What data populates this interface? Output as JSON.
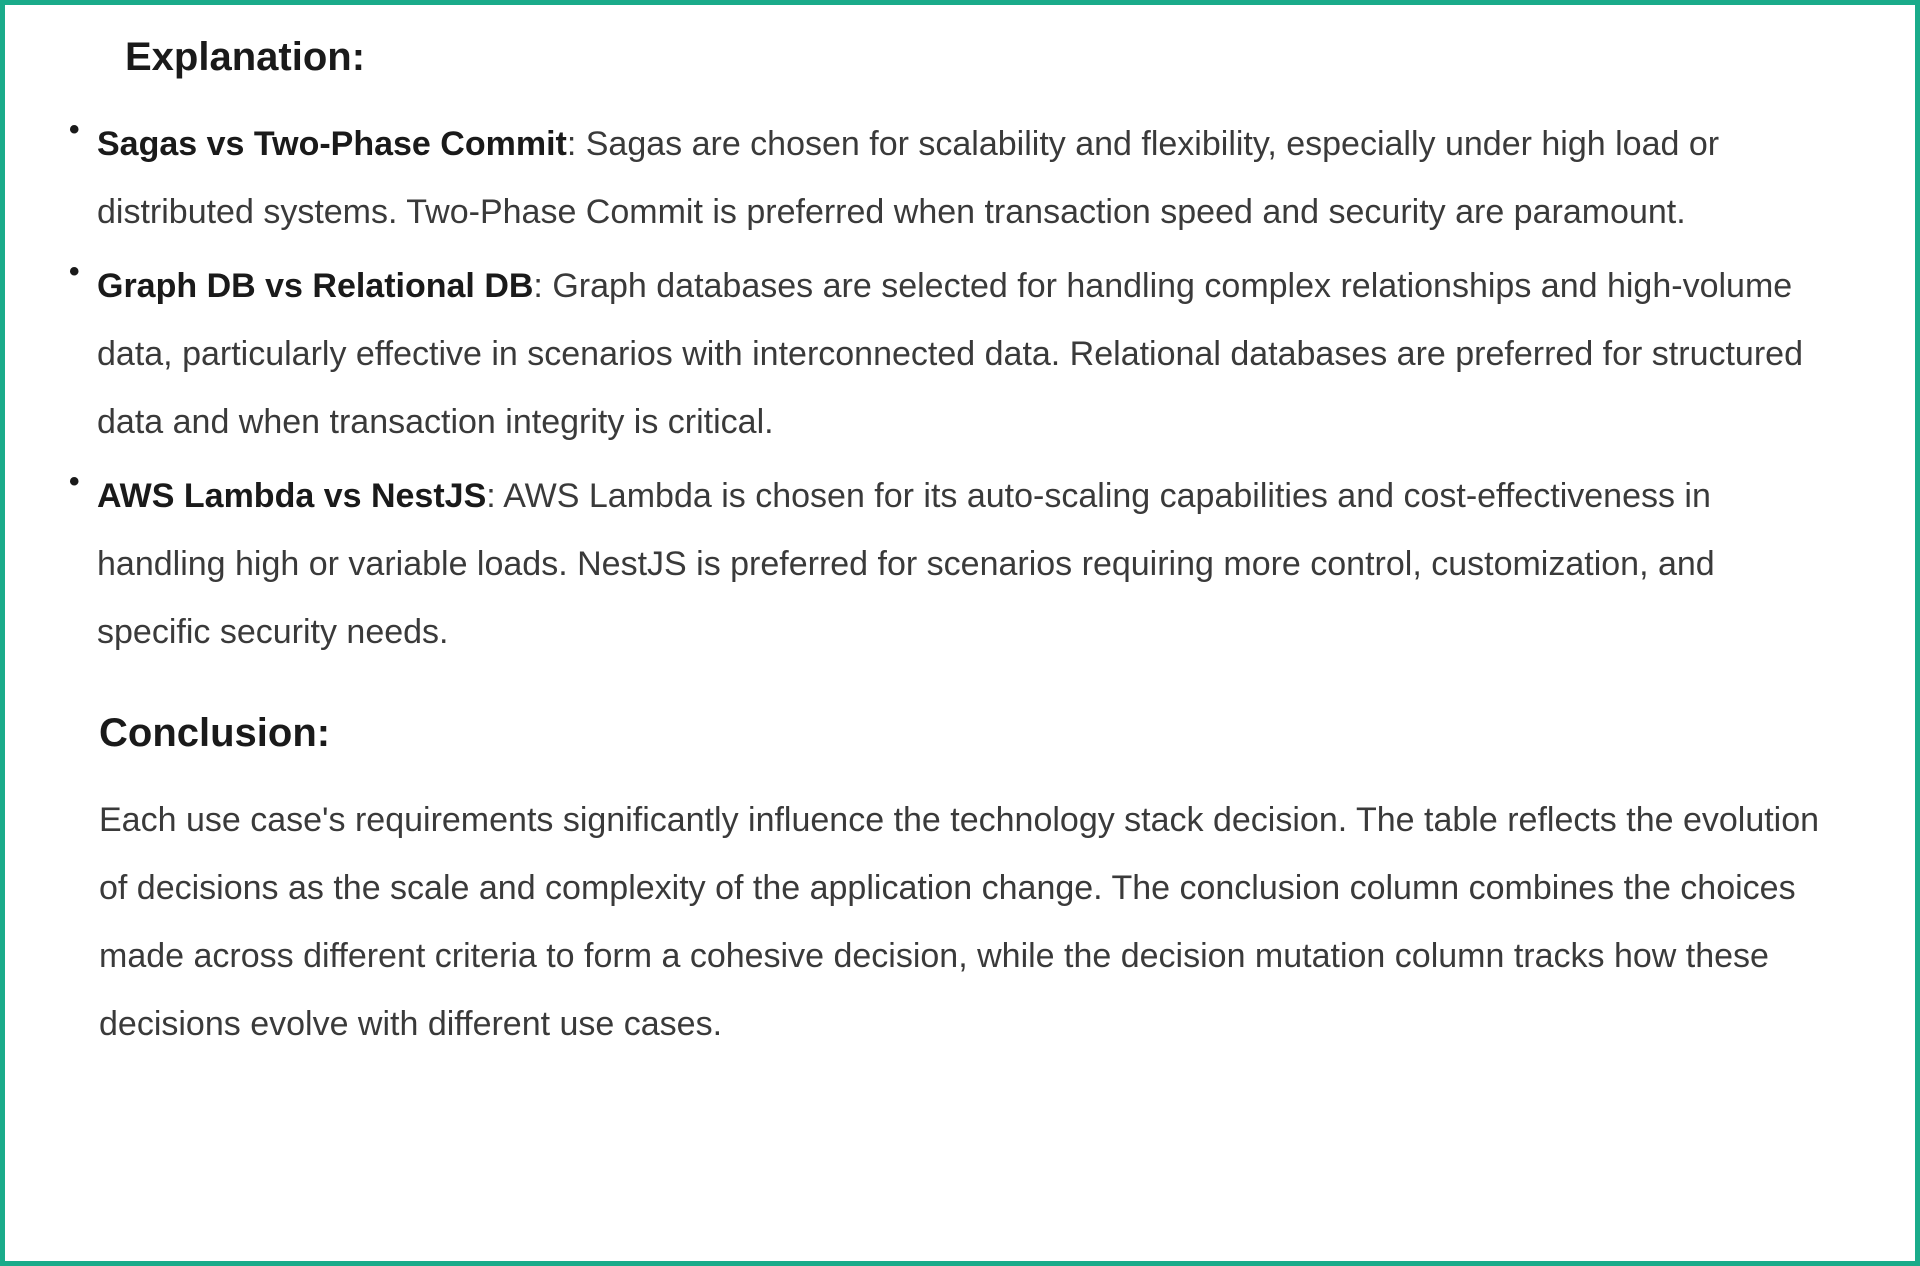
{
  "styling": {
    "border_color": "#1aab8a",
    "border_width": 5,
    "background_color": "#ffffff",
    "heading_color": "#1a1a1a",
    "body_color": "#3a3a3a",
    "heading_fontsize": 40,
    "body_fontsize": 34,
    "line_height": 2.0,
    "font_family": "-apple-system, BlinkMacSystemFont, 'Segoe UI', Helvetica, Arial, sans-serif"
  },
  "explanation": {
    "heading": "Explanation:",
    "items": [
      {
        "term": "Sagas vs Two-Phase Commit",
        "text": ": Sagas are chosen for scalability and flexibility, especially under high load or distributed systems. Two-Phase Commit is preferred when transaction speed and security are paramount."
      },
      {
        "term": "Graph DB vs Relational DB",
        "text": ": Graph databases are selected for handling complex relationships and high-volume data, particularly effective in scenarios with interconnected data. Relational databases are preferred for structured data and when transaction integrity is critical."
      },
      {
        "term": "AWS Lambda vs NestJS",
        "text": ": AWS Lambda is chosen for its auto-scaling capabilities and cost-effectiveness in handling high or variable loads. NestJS is preferred for scenarios requiring more control, customization, and specific security needs."
      }
    ]
  },
  "conclusion": {
    "heading": "Conclusion:",
    "text": "Each use case's requirements significantly influence the technology stack decision. The table reflects the evolution of decisions as the scale and complexity of the application change. The conclusion column combines the choices made across different criteria to form a cohesive decision, while the decision mutation column tracks how these decisions evolve with different use cases."
  }
}
